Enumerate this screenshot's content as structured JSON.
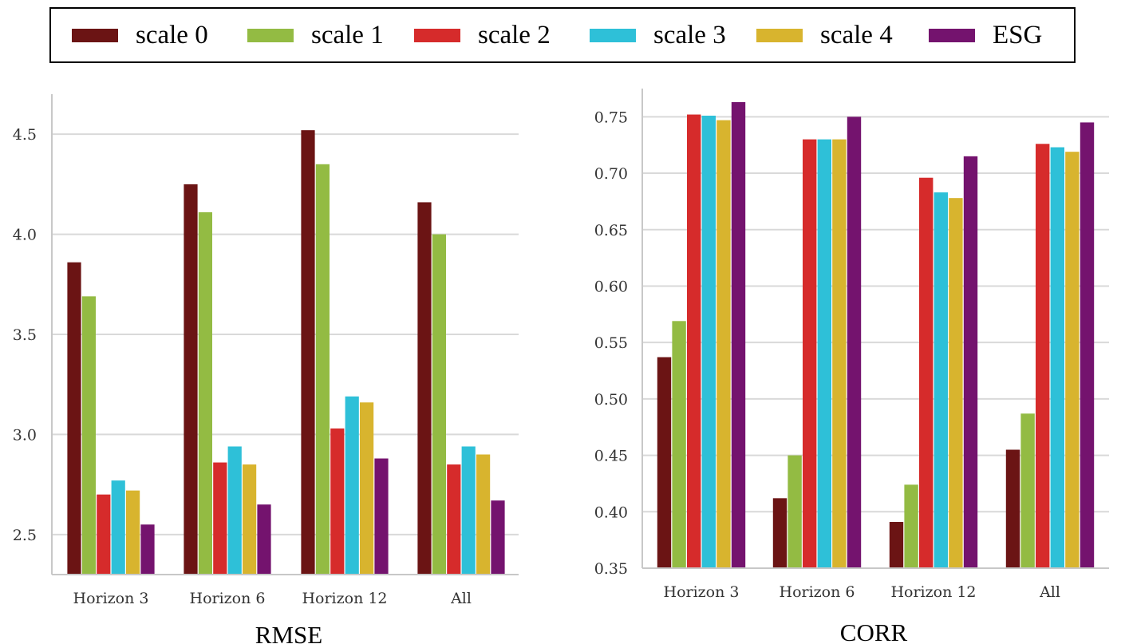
{
  "legend": {
    "items": [
      {
        "label": "scale 0",
        "color": "#6b1414"
      },
      {
        "label": "scale 1",
        "color": "#93bb43"
      },
      {
        "label": "scale 2",
        "color": "#d62b2b"
      },
      {
        "label": "scale 3",
        "color": "#2ec0d8"
      },
      {
        "label": "scale 4",
        "color": "#d8b42e"
      },
      {
        "label": "ESG",
        "color": "#74136e"
      }
    ]
  },
  "chart_data": [
    {
      "type": "bar",
      "title": "RMSE",
      "categories": [
        "Horizon 3",
        "Horizon 6",
        "Horizon 12",
        "All"
      ],
      "ylim": [
        2.3,
        4.7
      ],
      "yticks": [
        2.5,
        3.0,
        3.5,
        4.0,
        4.5
      ],
      "ytick_labels": [
        "2.5",
        "3.0",
        "3.5",
        "4.0",
        "4.5"
      ],
      "grid": true,
      "series": [
        {
          "name": "scale 0",
          "values": [
            3.86,
            4.25,
            4.52,
            4.16
          ]
        },
        {
          "name": "scale 1",
          "values": [
            3.69,
            4.11,
            4.35,
            4.0
          ]
        },
        {
          "name": "scale 2",
          "values": [
            2.7,
            2.86,
            3.03,
            2.85
          ]
        },
        {
          "name": "scale 3",
          "values": [
            2.77,
            2.94,
            3.19,
            2.94
          ]
        },
        {
          "name": "scale 4",
          "values": [
            2.72,
            2.85,
            3.16,
            2.9
          ]
        },
        {
          "name": "ESG",
          "values": [
            2.55,
            2.65,
            2.88,
            2.67
          ]
        }
      ]
    },
    {
      "type": "bar",
      "title": "CORR",
      "categories": [
        "Horizon 3",
        "Horizon 6",
        "Horizon 12",
        "All"
      ],
      "ylim": [
        0.35,
        0.775
      ],
      "yticks": [
        0.35,
        0.4,
        0.45,
        0.5,
        0.55,
        0.6,
        0.65,
        0.7,
        0.75
      ],
      "ytick_labels": [
        "0.35",
        "0.40",
        "0.45",
        "0.50",
        "0.55",
        "0.60",
        "0.65",
        "0.70",
        "0.75"
      ],
      "grid": true,
      "series": [
        {
          "name": "scale 0",
          "values": [
            0.537,
            0.412,
            0.391,
            0.455
          ]
        },
        {
          "name": "scale 1",
          "values": [
            0.569,
            0.45,
            0.424,
            0.487
          ]
        },
        {
          "name": "scale 2",
          "values": [
            0.752,
            0.73,
            0.696,
            0.726
          ]
        },
        {
          "name": "scale 3",
          "values": [
            0.751,
            0.73,
            0.683,
            0.723
          ]
        },
        {
          "name": "scale 4",
          "values": [
            0.747,
            0.73,
            0.678,
            0.719
          ]
        },
        {
          "name": "ESG",
          "values": [
            0.763,
            0.75,
            0.715,
            0.745
          ]
        }
      ]
    }
  ]
}
